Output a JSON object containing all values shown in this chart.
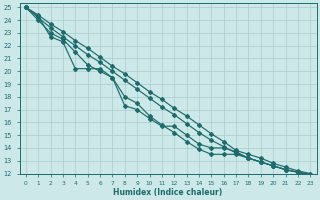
{
  "xlabel": "Humidex (Indice chaleur)",
  "ylabel": "",
  "background_color": "#cce8e8",
  "grid_color": "#aacccc",
  "line_color": "#1e6b6b",
  "xlim": [
    -0.5,
    23.5
  ],
  "ylim": [
    12,
    25.3
  ],
  "xticks": [
    0,
    1,
    2,
    3,
    4,
    5,
    6,
    7,
    8,
    9,
    10,
    11,
    12,
    13,
    14,
    15,
    16,
    17,
    18,
    19,
    20,
    21,
    22,
    23
  ],
  "yticks": [
    12,
    13,
    14,
    15,
    16,
    17,
    18,
    19,
    20,
    21,
    22,
    23,
    24,
    25
  ],
  "lines": [
    {
      "x": [
        0,
        1,
        2,
        3,
        4,
        5,
        6,
        7,
        8,
        9,
        10,
        11,
        12,
        13,
        14,
        15,
        16,
        17,
        18,
        19,
        20,
        21,
        22,
        23
      ],
      "y": [
        25,
        24.4,
        23.7,
        23.1,
        22.4,
        21.8,
        21.1,
        20.4,
        19.8,
        19.1,
        18.4,
        17.8,
        17.1,
        16.5,
        15.8,
        15.1,
        14.5,
        13.8,
        13.5,
        13.2,
        12.8,
        12.5,
        12.2,
        12.0
      ]
    },
    {
      "x": [
        0,
        1,
        2,
        3,
        4,
        5,
        6,
        7,
        8,
        9,
        10,
        11,
        12,
        13,
        14,
        15,
        16,
        17,
        18,
        19,
        20,
        21,
        22,
        23
      ],
      "y": [
        25,
        24.2,
        23.4,
        22.7,
        22.0,
        21.3,
        20.7,
        20.0,
        19.3,
        18.6,
        17.9,
        17.2,
        16.6,
        15.9,
        15.2,
        14.6,
        14.1,
        13.6,
        13.2,
        12.9,
        12.6,
        12.3,
        12.1,
        11.9
      ]
    },
    {
      "x": [
        0,
        1,
        2,
        3,
        4,
        5,
        6,
        7,
        8,
        9,
        10,
        11,
        12,
        13,
        14,
        15,
        16,
        17,
        18,
        19,
        20,
        21,
        22,
        23
      ],
      "y": [
        25,
        24.0,
        23.0,
        22.5,
        21.5,
        20.5,
        20.0,
        19.5,
        18.0,
        17.5,
        16.5,
        15.8,
        15.2,
        14.5,
        13.9,
        13.5,
        13.5,
        13.5,
        13.2,
        12.9,
        12.6,
        12.3,
        12.1,
        11.9
      ]
    },
    {
      "x": [
        0,
        1,
        2,
        3,
        4,
        5,
        6,
        7,
        8,
        9,
        10,
        11,
        12,
        13,
        14,
        15,
        16,
        17,
        18,
        19,
        20,
        21,
        22,
        23
      ],
      "y": [
        25,
        24.3,
        22.7,
        22.3,
        20.2,
        20.2,
        20.2,
        19.5,
        17.3,
        17.0,
        16.3,
        15.7,
        15.7,
        15.0,
        14.3,
        14.0,
        14.0,
        13.7,
        13.2,
        12.9,
        12.6,
        12.3,
        12.1,
        11.9
      ]
    }
  ],
  "marker": "D",
  "markersize": 2.0,
  "linewidth": 0.85
}
